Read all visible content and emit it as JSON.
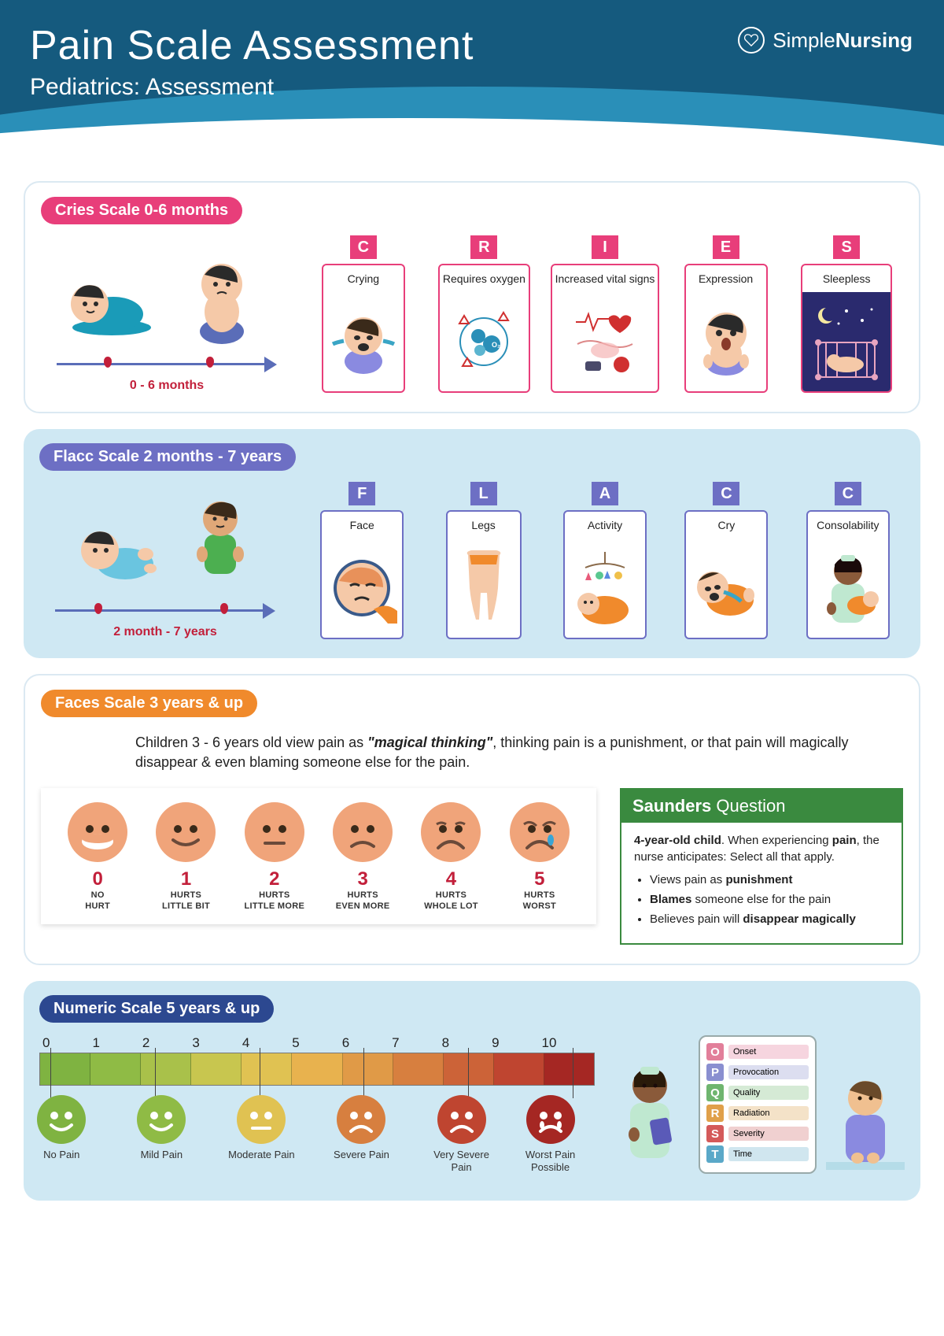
{
  "header": {
    "title": "Pain Scale Assessment",
    "subtitle": "Pediatrics: Assessment",
    "brand1": "Simple",
    "brand2": "Nursing",
    "bg_color": "#155a7e",
    "wave_color": "#2a8fb8"
  },
  "cries": {
    "badge": "Cries Scale 0-6 months",
    "badge_color": "#e83e7a",
    "age_label": "0 - 6 months",
    "items": [
      {
        "letter": "C",
        "label": "Crying"
      },
      {
        "letter": "R",
        "label": "Requires oxygen"
      },
      {
        "letter": "I",
        "label": "Increased vital signs"
      },
      {
        "letter": "E",
        "label": "Expression"
      },
      {
        "letter": "S",
        "label": "Sleepless"
      }
    ]
  },
  "flacc": {
    "badge": "Flacc Scale 2 months - 7 years",
    "badge_color": "#6d6fc4",
    "age_label": "2 month - 7 years",
    "items": [
      {
        "letter": "F",
        "label": "Face"
      },
      {
        "letter": "L",
        "label": "Legs"
      },
      {
        "letter": "A",
        "label": "Activity"
      },
      {
        "letter": "C",
        "label": "Cry"
      },
      {
        "letter": "C",
        "label": "Consolability"
      }
    ]
  },
  "faces": {
    "badge": "Faces Scale 3 years & up",
    "badge_color": "#f08a2c",
    "desc_pre": "Children 3 - 6 years old view pain as ",
    "desc_bold": "\"magical thinking\"",
    "desc_post": ", thinking pain is a punishment, or that pain will magically disappear & even blaming someone else for the pain.",
    "face_color": "#f0a47a",
    "scale": [
      {
        "num": "0",
        "label": "NO HURT",
        "mouth": "happy-open"
      },
      {
        "num": "1",
        "label": "HURTS LITTLE BIT",
        "mouth": "smile"
      },
      {
        "num": "2",
        "label": "HURTS LITTLE MORE",
        "mouth": "flat"
      },
      {
        "num": "3",
        "label": "HURTS EVEN MORE",
        "mouth": "sad1"
      },
      {
        "num": "4",
        "label": "HURTS WHOLE LOT",
        "mouth": "sad2"
      },
      {
        "num": "5",
        "label": "HURTS WORST",
        "mouth": "cry"
      }
    ]
  },
  "saunders": {
    "title_bold": "Saunders",
    "title_rest": " Question",
    "lead_bold1": "4-year-old child",
    "lead_mid": ". When experiencing ",
    "lead_bold2": "pain",
    "lead_post": ", the nurse anticipates: Select all that apply.",
    "bullets": [
      {
        "pre": "Views pain as ",
        "bold": "punishment",
        "post": ""
      },
      {
        "pre": "",
        "bold": "Blames",
        "post": " someone else for the pain"
      },
      {
        "pre": "Believes pain will ",
        "bold": "disappear magically",
        "post": ""
      }
    ]
  },
  "numeric": {
    "badge": "Numeric Scale 5 years & up",
    "badge_color": "#2c4890",
    "ticks": [
      "0",
      "1",
      "2",
      "3",
      "4",
      "5",
      "6",
      "7",
      "8",
      "9",
      "10"
    ],
    "seg_colors": [
      "#7fb341",
      "#8fbb45",
      "#a9c14a",
      "#c8c64f",
      "#e0c252",
      "#e8b24e",
      "#e09a47",
      "#d77f3f",
      "#cc6338",
      "#bf4530",
      "#a52723"
    ],
    "faces": [
      {
        "label": "No Pain",
        "color": "#7fb341",
        "mouth": "happy"
      },
      {
        "label": "Mild Pain",
        "color": "#8fbb45",
        "mouth": "happy"
      },
      {
        "label": "Moderate Pain",
        "color": "#e0c252",
        "mouth": "flat"
      },
      {
        "label": "Severe Pain",
        "color": "#d77f3f",
        "mouth": "sad"
      },
      {
        "label": "Very Severe Pain",
        "color": "#bf4530",
        "mouth": "sad"
      },
      {
        "label": "Worst Pain Possible",
        "color": "#a52723",
        "mouth": "cry"
      }
    ],
    "face_positions_pct": [
      4,
      22,
      40,
      58,
      76,
      92
    ]
  },
  "opqrst": [
    {
      "letter": "O",
      "label": "Onset",
      "lc": "#e27f9a",
      "bc": "#f6d5df"
    },
    {
      "letter": "P",
      "label": "Provocation",
      "lc": "#8a8fd0",
      "bc": "#dcdef0"
    },
    {
      "letter": "Q",
      "label": "Quality",
      "lc": "#6fb56f",
      "bc": "#d5ead5"
    },
    {
      "letter": "R",
      "label": "Radiation",
      "lc": "#e0a04a",
      "bc": "#f4e2c8"
    },
    {
      "letter": "S",
      "label": "Severity",
      "lc": "#d45a5a",
      "bc": "#f0d0d0"
    },
    {
      "letter": "T",
      "label": "Time",
      "lc": "#5aa8c8",
      "bc": "#d0e6ef"
    }
  ]
}
